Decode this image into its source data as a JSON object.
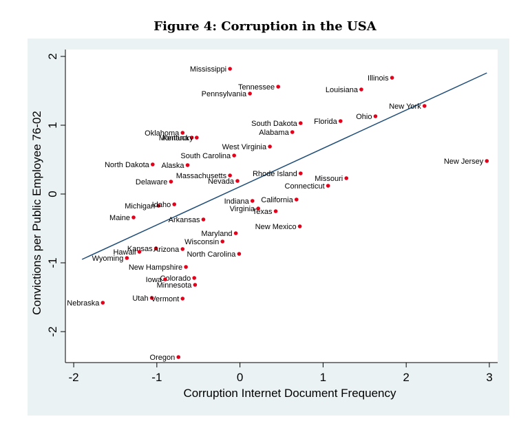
{
  "chart_data": {
    "type": "scatter",
    "title": "Figure 4: Corruption in the USA",
    "xlabel": "Corruption Internet Document Frequency",
    "ylabel": "Convictions per Public Employee 76-02",
    "xlim": [
      -2.1,
      3.1
    ],
    "ylim": [
      -2.45,
      2.1
    ],
    "xticks": [
      "-2",
      "-1",
      "0",
      "1",
      "2",
      "3"
    ],
    "yticks": [
      "-2",
      "-1",
      "0",
      "1",
      "2"
    ],
    "fit_line": {
      "x": [
        -1.9,
        2.97
      ],
      "y": [
        -0.95,
        1.76
      ]
    },
    "colors": {
      "point": "#e3001b",
      "line": "#1f4e79",
      "background": "#eaf2f3",
      "plot": "#ffffff"
    },
    "points": [
      {
        "label": "Mississippi",
        "x": -0.12,
        "y": 1.82
      },
      {
        "label": "Tennessee",
        "x": 0.46,
        "y": 1.56
      },
      {
        "label": "Pennsylvania",
        "x": 0.12,
        "y": 1.46
      },
      {
        "label": "Illinois",
        "x": 1.83,
        "y": 1.69
      },
      {
        "label": "Louisiana",
        "x": 1.46,
        "y": 1.52
      },
      {
        "label": "New York",
        "x": 2.22,
        "y": 1.28
      },
      {
        "label": "Ohio",
        "x": 1.63,
        "y": 1.13
      },
      {
        "label": "Florida",
        "x": 1.21,
        "y": 1.06
      },
      {
        "label": "South Dakota",
        "x": 0.73,
        "y": 1.03
      },
      {
        "label": "Alabama",
        "x": 0.63,
        "y": 0.9
      },
      {
        "label": "Oklahoma",
        "x": -0.69,
        "y": 0.89
      },
      {
        "label": "Montana",
        "x": -0.58,
        "y": 0.82
      },
      {
        "label": "Kentucky",
        "x": -0.52,
        "y": 0.82
      },
      {
        "label": "West Virginia",
        "x": 0.36,
        "y": 0.69
      },
      {
        "label": "South Carolina",
        "x": -0.07,
        "y": 0.56
      },
      {
        "label": "North Dakota",
        "x": -1.05,
        "y": 0.43
      },
      {
        "label": "Alaska",
        "x": -0.63,
        "y": 0.42
      },
      {
        "label": "New Jersey",
        "x": 2.97,
        "y": 0.48
      },
      {
        "label": "Rhode Island",
        "x": 0.73,
        "y": 0.3
      },
      {
        "label": "Massachusetts",
        "x": -0.12,
        "y": 0.27
      },
      {
        "label": "Missouri",
        "x": 1.28,
        "y": 0.23
      },
      {
        "label": "Nevada",
        "x": -0.03,
        "y": 0.19
      },
      {
        "label": "Delaware",
        "x": -0.83,
        "y": 0.18
      },
      {
        "label": "Connecticut",
        "x": 1.06,
        "y": 0.12
      },
      {
        "label": "California",
        "x": 0.68,
        "y": -0.08
      },
      {
        "label": "Indiana",
        "x": 0.15,
        "y": -0.1
      },
      {
        "label": "Michigan",
        "x": -0.98,
        "y": -0.17
      },
      {
        "label": "Idaho",
        "x": -0.79,
        "y": -0.15
      },
      {
        "label": "Virginia",
        "x": 0.22,
        "y": -0.21
      },
      {
        "label": "Texas",
        "x": 0.43,
        "y": -0.25
      },
      {
        "label": "Maine",
        "x": -1.28,
        "y": -0.34
      },
      {
        "label": "Arkansas",
        "x": -0.44,
        "y": -0.37
      },
      {
        "label": "New Mexico",
        "x": 0.72,
        "y": -0.47
      },
      {
        "label": "Maryland",
        "x": -0.05,
        "y": -0.57
      },
      {
        "label": "Wisconsin",
        "x": -0.21,
        "y": -0.69
      },
      {
        "label": "Kansas",
        "x": -1.01,
        "y": -0.79
      },
      {
        "label": "Arizona",
        "x": -0.69,
        "y": -0.8
      },
      {
        "label": "Hawaii",
        "x": -1.21,
        "y": -0.84
      },
      {
        "label": "North Carolina",
        "x": -0.01,
        "y": -0.87
      },
      {
        "label": "Wyoming",
        "x": -1.36,
        "y": -0.93
      },
      {
        "label": "New Hampshire",
        "x": -0.65,
        "y": -1.06
      },
      {
        "label": "Colorado",
        "x": -0.55,
        "y": -1.22
      },
      {
        "label": "Iowa",
        "x": -0.9,
        "y": -1.24
      },
      {
        "label": "Minnesota",
        "x": -0.54,
        "y": -1.32
      },
      {
        "label": "Utah",
        "x": -1.06,
        "y": -1.51
      },
      {
        "label": "Vermont",
        "x": -0.69,
        "y": -1.52
      },
      {
        "label": "Nebraska",
        "x": -1.65,
        "y": -1.58
      },
      {
        "label": "Oregon",
        "x": -0.74,
        "y": -2.37
      }
    ]
  }
}
